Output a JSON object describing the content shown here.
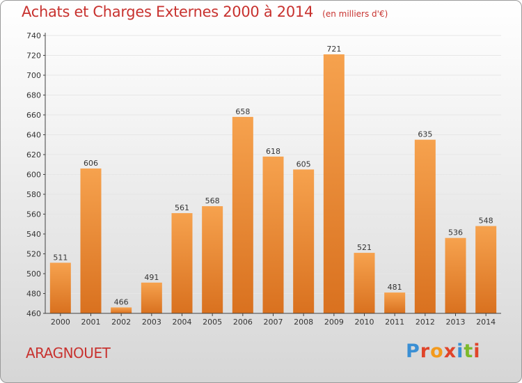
{
  "title": "Achats et Charges Externes 2000 à 2014",
  "unit": "(en milliers d'€)",
  "town": "ARAGNOUET",
  "logo": {
    "text": "Proxiti",
    "colors": [
      "#3a8fd4",
      "#e0442a",
      "#f39a1c",
      "#e0442a",
      "#3a8fd4",
      "#7cb92b",
      "#e0442a"
    ]
  },
  "colors": {
    "bar_light": "#f6a24e",
    "bar_dark": "#d9711f",
    "title": "#c8322f",
    "grid": "#e6e6e6",
    "axis": "#404040"
  },
  "chart_data": {
    "type": "bar",
    "categories": [
      "2000",
      "2001",
      "2002",
      "2003",
      "2004",
      "2005",
      "2006",
      "2007",
      "2008",
      "2009",
      "2010",
      "2011",
      "2012",
      "2013",
      "2014"
    ],
    "values": [
      511,
      606,
      466,
      491,
      561,
      568,
      658,
      618,
      605,
      721,
      521,
      481,
      635,
      536,
      548
    ],
    "ylim": [
      460,
      740
    ],
    "yticks": [
      460,
      480,
      500,
      520,
      540,
      560,
      580,
      600,
      620,
      640,
      660,
      680,
      700,
      720,
      740
    ],
    "grid": true,
    "data_labels": true
  }
}
